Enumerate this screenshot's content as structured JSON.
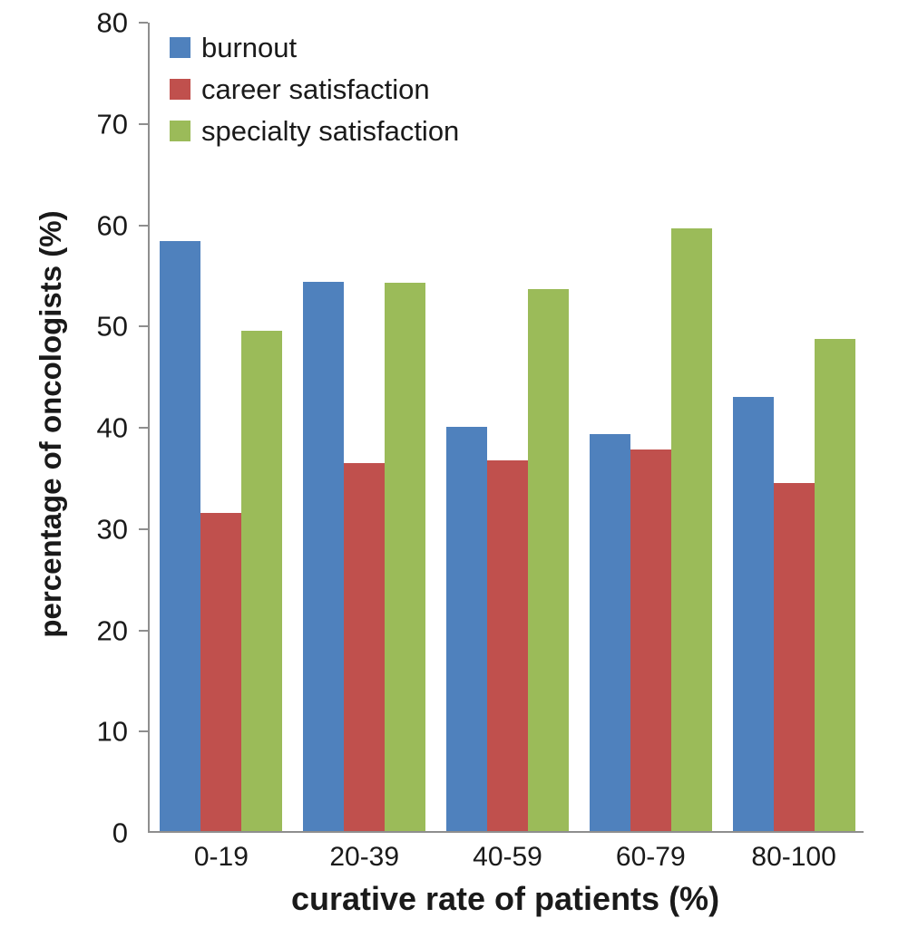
{
  "chart_data": {
    "type": "bar",
    "title": "",
    "xlabel": "curative rate of patients (%)",
    "ylabel": "percentage of oncologists (%)",
    "categories": [
      "0-19",
      "20-39",
      "40-59",
      "60-79",
      "80-100"
    ],
    "series": [
      {
        "name": "burnout",
        "color": "#4F81BD",
        "values": [
          58.3,
          54.2,
          39.9,
          39.2,
          42.9
        ]
      },
      {
        "name": "career satisfaction",
        "color": "#C0504D",
        "values": [
          31.4,
          36.3,
          36.6,
          37.7,
          34.4
        ]
      },
      {
        "name": "specialty satisfaction",
        "color": "#9BBB59",
        "values": [
          49.4,
          54.1,
          53.5,
          59.5,
          48.6
        ]
      }
    ],
    "ylim": [
      0,
      80
    ],
    "yticks": [
      0,
      10,
      20,
      30,
      40,
      50,
      60,
      70,
      80
    ],
    "grid": false,
    "legend_position": "top-left"
  },
  "colors": {
    "axis_line": "#8e8e8e",
    "text": "#1a1a1a",
    "background": "#ffffff"
  }
}
